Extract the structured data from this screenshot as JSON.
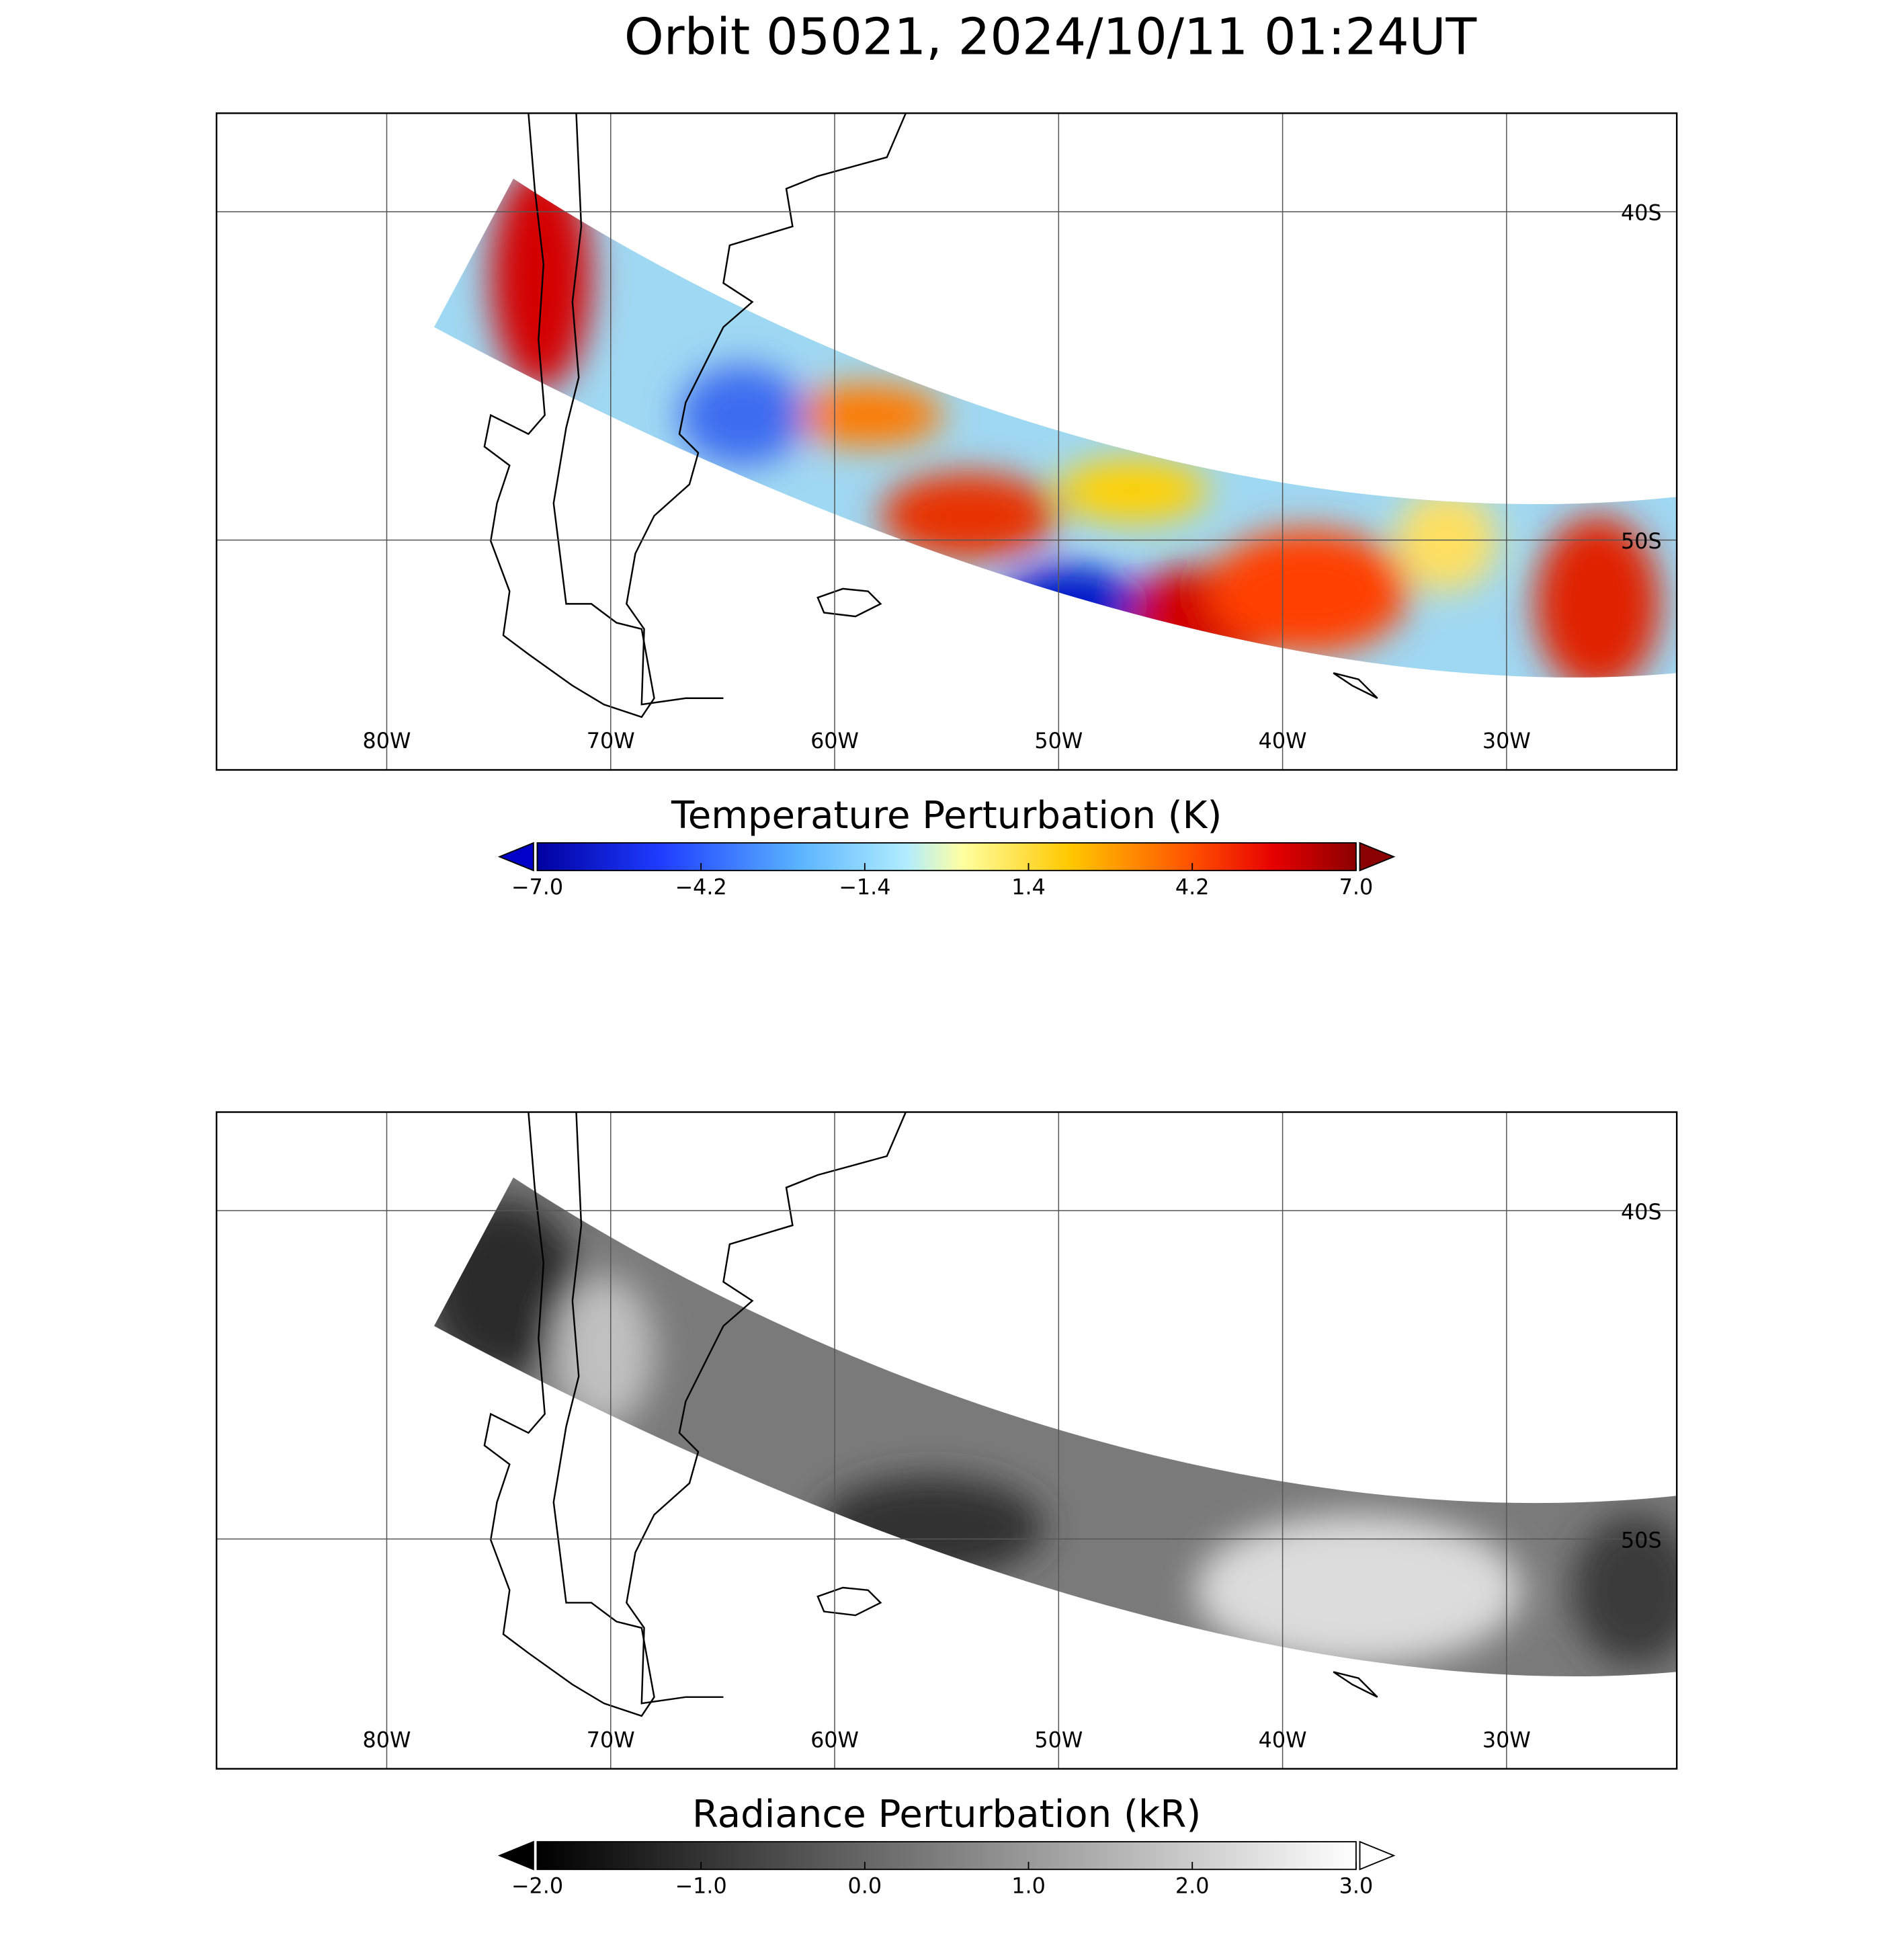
{
  "chart_data": [
    {
      "type": "map",
      "title": "Orbit 05021, 2024/10/11 01:24UT",
      "xlim": [
        -87.6,
        -22.4
      ],
      "ylim": [
        -57,
        -37
      ],
      "xticks": [
        {
          "value": -80,
          "label": "80W"
        },
        {
          "value": -70,
          "label": "70W"
        },
        {
          "value": -60,
          "label": "60W"
        },
        {
          "value": -50,
          "label": "50W"
        },
        {
          "value": -40,
          "label": "40W"
        },
        {
          "value": -30,
          "label": "30W"
        }
      ],
      "yticks": [
        {
          "value": -40,
          "label": "40S"
        },
        {
          "value": -50,
          "label": "50S"
        }
      ],
      "grid": true,
      "colorbar": {
        "label": "Temperature Perturbation (K)",
        "lim": [
          -7,
          7
        ],
        "ticks": [
          {
            "value": -7,
            "label": "−7.0"
          },
          {
            "value": -4.2,
            "label": "−4.2"
          },
          {
            "value": -1.4,
            "label": "−1.4"
          },
          1.4,
          4.2,
          {
            "value": 7,
            "label": "7.0"
          }
        ]
      }
    },
    {
      "type": "map",
      "xlim": [
        -87.6,
        -22.4
      ],
      "ylim": [
        -57,
        -37
      ],
      "xticks": [
        {
          "value": -80,
          "label": "80W"
        },
        {
          "value": -70,
          "label": "70W"
        },
        {
          "value": -60,
          "label": "60W"
        },
        {
          "value": -50,
          "label": "50W"
        },
        {
          "value": -40,
          "label": "40W"
        },
        {
          "value": -30,
          "label": "30W"
        }
      ],
      "yticks": [
        {
          "value": -40,
          "label": "40S"
        },
        {
          "value": -50,
          "label": "50S"
        }
      ],
      "grid": true,
      "colorbar": {
        "label": "Radiance Perturbation (kR)",
        "lim": [
          -2,
          3
        ],
        "ticks": [
          {
            "value": -2,
            "label": "−2.0"
          },
          {
            "value": -1,
            "label": "−1.0"
          },
          {
            "value": 0,
            "label": "0.0"
          },
          {
            "value": 1,
            "label": "1.0"
          },
          {
            "value": 2,
            "label": "2.0"
          },
          {
            "value": 3,
            "label": "3.0"
          }
        ]
      }
    }
  ]
}
